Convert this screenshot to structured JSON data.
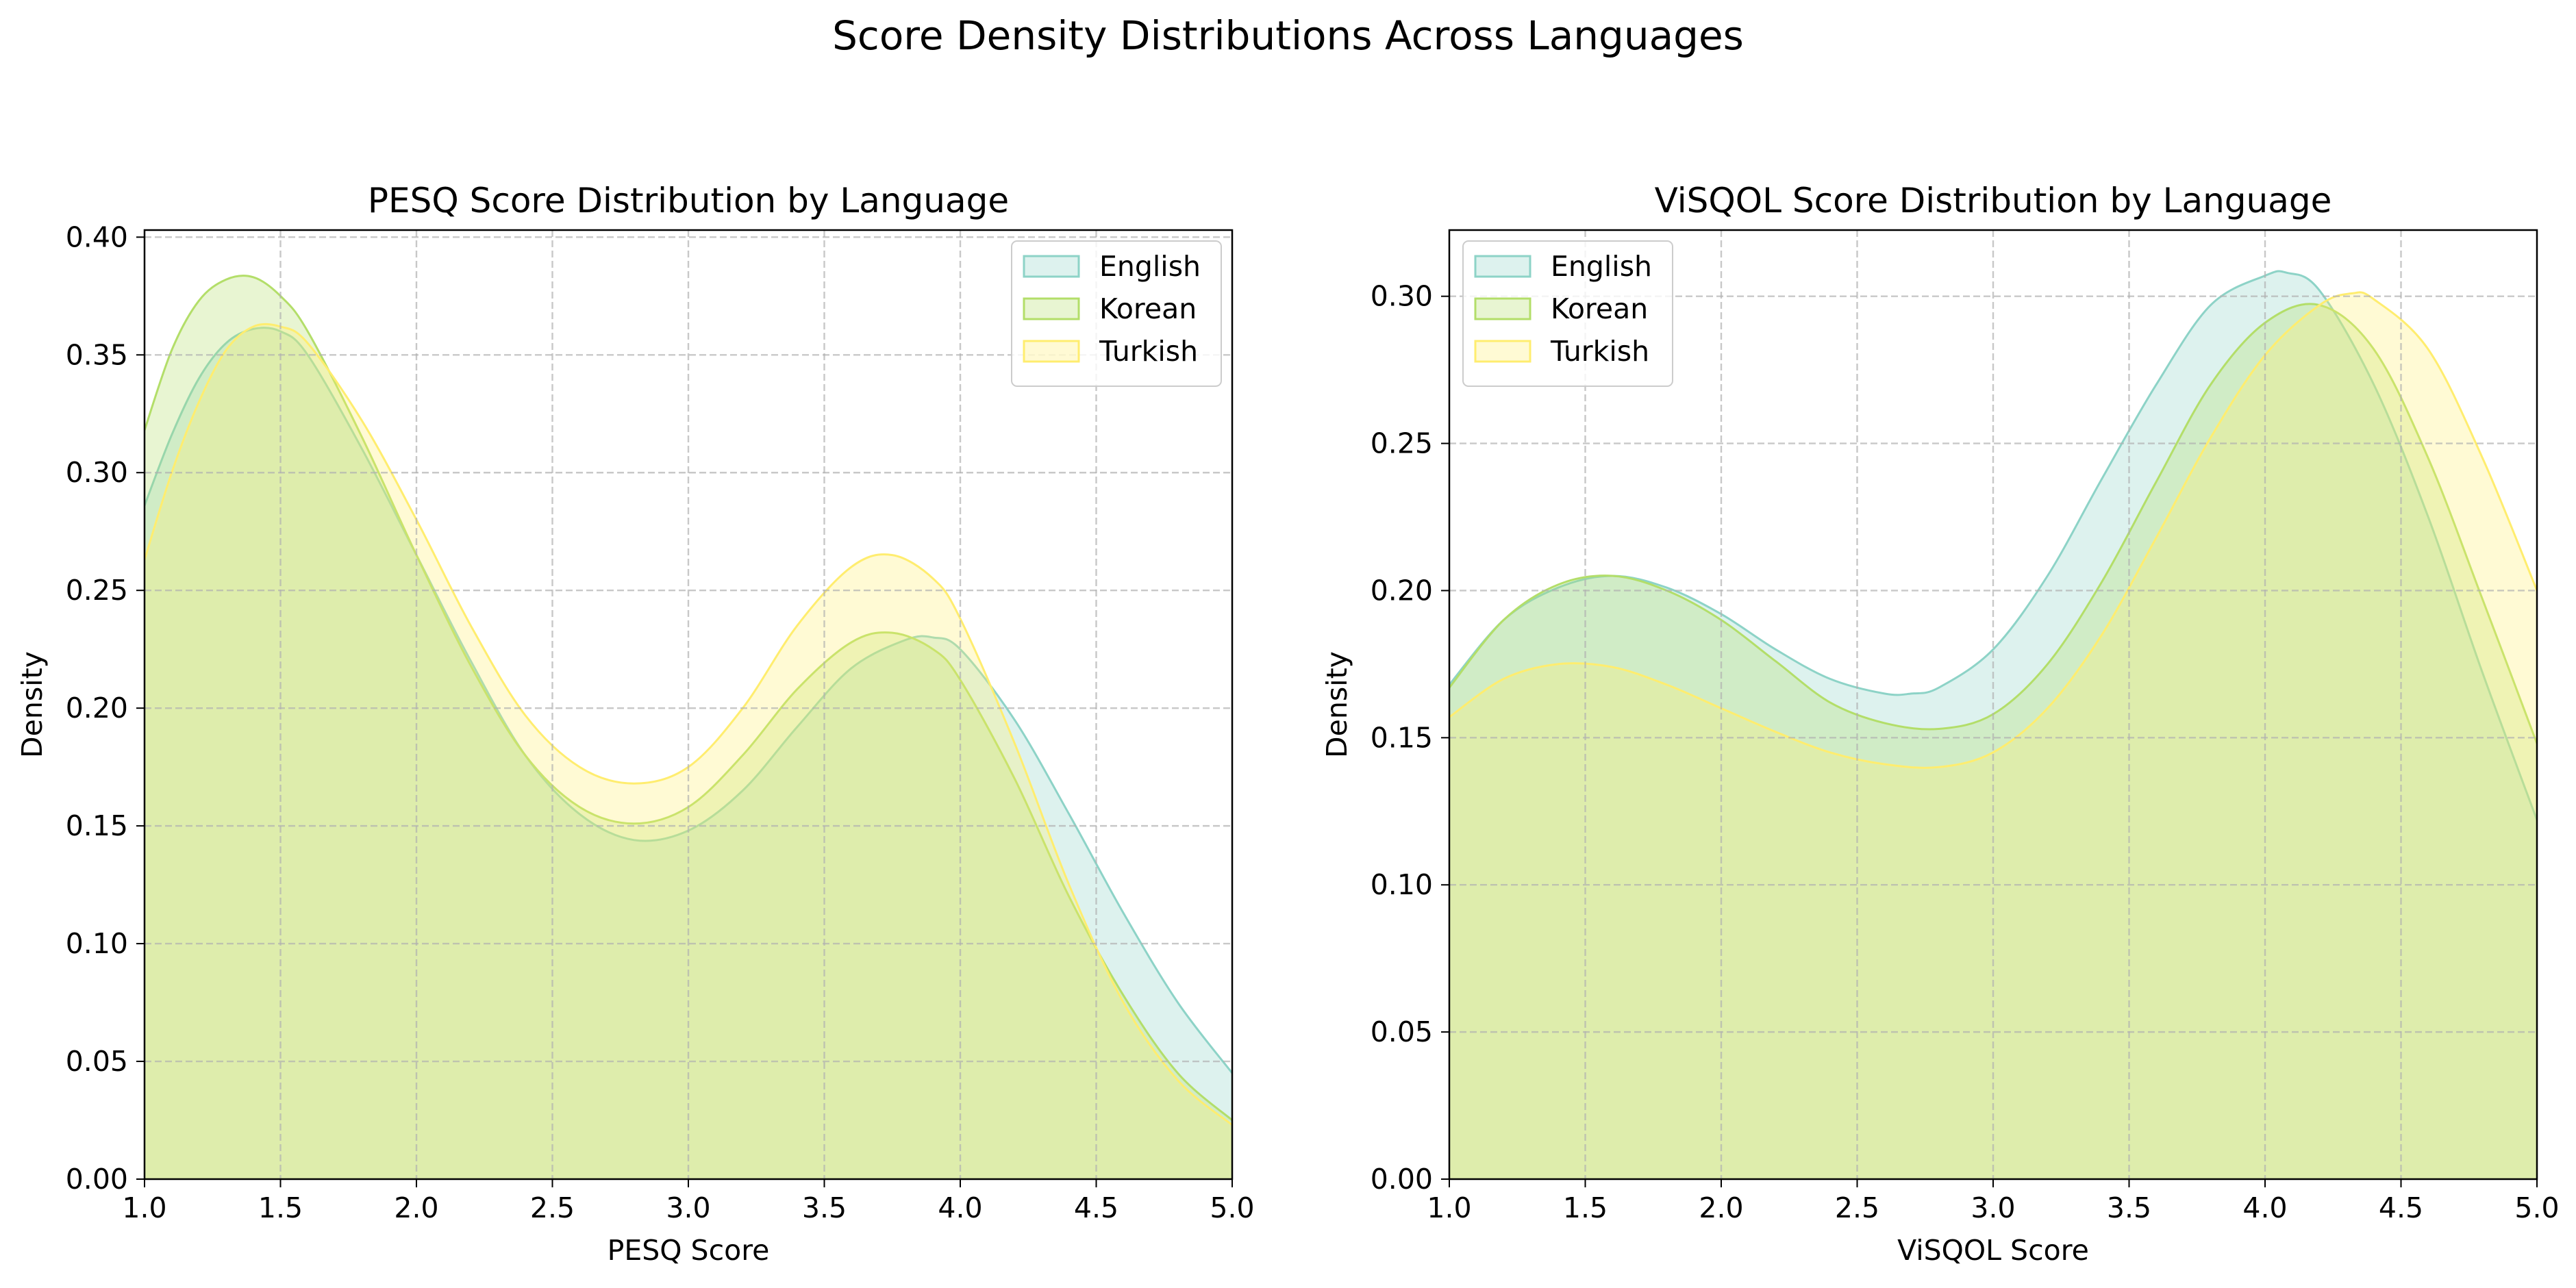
{
  "suptitle": "Score Density Distributions Across Languages",
  "chart_data": [
    {
      "type": "area",
      "title": "PESQ Score Distribution by Language",
      "xlabel": "PESQ Score",
      "ylabel": "Density",
      "xlim": [
        1.0,
        5.0
      ],
      "ylim": [
        0.0,
        0.403
      ],
      "xticks": [
        "1.0",
        "1.5",
        "2.0",
        "2.5",
        "3.0",
        "3.5",
        "4.0",
        "4.5",
        "5.0"
      ],
      "yticks": [
        "0.00",
        "0.05",
        "0.10",
        "0.15",
        "0.20",
        "0.25",
        "0.30",
        "0.35",
        "0.40"
      ],
      "grid": true,
      "legend_position": "top-right",
      "series": [
        {
          "name": "English",
          "color": "#8dd3c7",
          "x": [
            1.0,
            1.1,
            1.2,
            1.3,
            1.4,
            1.5,
            1.6,
            1.8,
            2.0,
            2.2,
            2.4,
            2.6,
            2.8,
            3.0,
            3.2,
            3.4,
            3.6,
            3.8,
            3.9,
            4.0,
            4.2,
            4.4,
            4.6,
            4.8,
            5.0
          ],
          "y": [
            0.286,
            0.316,
            0.34,
            0.355,
            0.361,
            0.36,
            0.35,
            0.31,
            0.265,
            0.22,
            0.18,
            0.155,
            0.144,
            0.148,
            0.165,
            0.192,
            0.217,
            0.229,
            0.23,
            0.225,
            0.195,
            0.155,
            0.113,
            0.075,
            0.045
          ]
        },
        {
          "name": "Korean",
          "color": "#b3de69",
          "x": [
            1.0,
            1.1,
            1.2,
            1.3,
            1.4,
            1.5,
            1.6,
            1.8,
            2.0,
            2.2,
            2.4,
            2.6,
            2.8,
            3.0,
            3.2,
            3.4,
            3.6,
            3.75,
            3.9,
            4.0,
            4.2,
            4.4,
            4.6,
            4.8,
            5.0
          ],
          "y": [
            0.318,
            0.352,
            0.373,
            0.382,
            0.383,
            0.375,
            0.36,
            0.315,
            0.265,
            0.218,
            0.18,
            0.158,
            0.151,
            0.158,
            0.18,
            0.208,
            0.228,
            0.232,
            0.225,
            0.212,
            0.17,
            0.12,
            0.078,
            0.045,
            0.025
          ]
        },
        {
          "name": "Turkish",
          "color": "#ffed6f",
          "x": [
            1.0,
            1.1,
            1.2,
            1.3,
            1.4,
            1.5,
            1.6,
            1.8,
            2.0,
            2.2,
            2.4,
            2.6,
            2.8,
            3.0,
            3.2,
            3.4,
            3.6,
            3.75,
            3.9,
            4.0,
            4.2,
            4.4,
            4.6,
            4.8,
            5.0
          ],
          "y": [
            0.263,
            0.3,
            0.33,
            0.352,
            0.362,
            0.362,
            0.355,
            0.322,
            0.28,
            0.235,
            0.197,
            0.175,
            0.168,
            0.175,
            0.2,
            0.235,
            0.26,
            0.265,
            0.255,
            0.238,
            0.185,
            0.125,
            0.075,
            0.042,
            0.023
          ]
        }
      ]
    },
    {
      "type": "area",
      "title": "ViSQOL Score Distribution by Language",
      "xlabel": "ViSQOL Score",
      "ylabel": "Density",
      "xlim": [
        1.0,
        5.0
      ],
      "ylim": [
        0.0,
        0.3225
      ],
      "xticks": [
        "1.0",
        "1.5",
        "2.0",
        "2.5",
        "3.0",
        "3.5",
        "4.0",
        "4.5",
        "5.0"
      ],
      "yticks": [
        "0.00",
        "0.05",
        "0.10",
        "0.15",
        "0.20",
        "0.25",
        "0.30"
      ],
      "grid": true,
      "legend_position": "top-left",
      "series": [
        {
          "name": "English",
          "color": "#8dd3c7",
          "x": [
            1.0,
            1.2,
            1.4,
            1.6,
            1.8,
            2.0,
            2.2,
            2.4,
            2.6,
            2.7,
            2.8,
            3.0,
            3.2,
            3.4,
            3.6,
            3.8,
            4.0,
            4.08,
            4.2,
            4.4,
            4.6,
            4.8,
            5.0
          ],
          "y": [
            0.168,
            0.19,
            0.201,
            0.205,
            0.201,
            0.192,
            0.18,
            0.17,
            0.165,
            0.165,
            0.167,
            0.18,
            0.205,
            0.238,
            0.27,
            0.297,
            0.307,
            0.308,
            0.302,
            0.27,
            0.225,
            0.172,
            0.122
          ]
        },
        {
          "name": "Korean",
          "color": "#b3de69",
          "x": [
            1.0,
            1.2,
            1.4,
            1.6,
            1.8,
            2.0,
            2.2,
            2.4,
            2.6,
            2.8,
            3.0,
            3.2,
            3.4,
            3.6,
            3.8,
            4.0,
            4.2,
            4.4,
            4.6,
            4.8,
            5.0
          ],
          "y": [
            0.167,
            0.19,
            0.202,
            0.205,
            0.2,
            0.19,
            0.176,
            0.162,
            0.155,
            0.153,
            0.158,
            0.175,
            0.203,
            0.237,
            0.27,
            0.291,
            0.297,
            0.282,
            0.245,
            0.197,
            0.148
          ]
        },
        {
          "name": "Turkish",
          "color": "#ffed6f",
          "x": [
            1.0,
            1.2,
            1.4,
            1.6,
            1.8,
            2.0,
            2.2,
            2.4,
            2.6,
            2.8,
            3.0,
            3.2,
            3.4,
            3.6,
            3.8,
            4.0,
            4.2,
            4.32,
            4.4,
            4.6,
            4.8,
            5.0
          ],
          "y": [
            0.157,
            0.17,
            0.175,
            0.174,
            0.168,
            0.16,
            0.152,
            0.145,
            0.141,
            0.14,
            0.145,
            0.16,
            0.185,
            0.218,
            0.252,
            0.28,
            0.297,
            0.301,
            0.299,
            0.282,
            0.245,
            0.2
          ]
        }
      ]
    }
  ]
}
